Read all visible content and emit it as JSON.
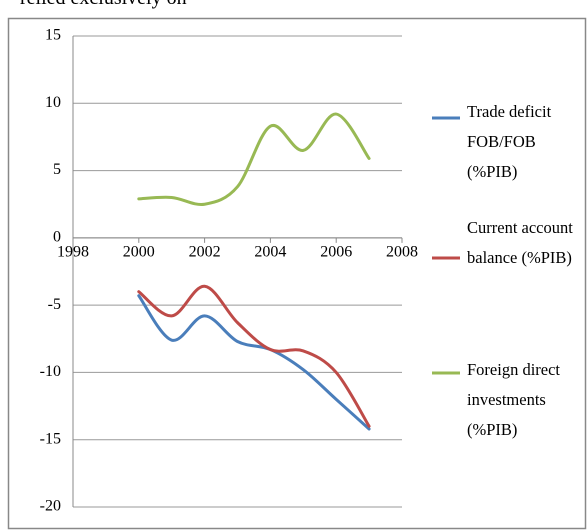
{
  "header_text": "relied exclusively on",
  "chart_data": {
    "type": "line",
    "x": [
      2000,
      2001,
      2002,
      2003,
      2004,
      2005,
      2006,
      2007
    ],
    "series": [
      {
        "name": "Trade deficit FOB/FOB (%PIB)",
        "color": "#4a7ebb",
        "values": [
          -4.3,
          -7.6,
          -5.8,
          -7.7,
          -8.3,
          -9.8,
          -12.0,
          -14.2
        ]
      },
      {
        "name": "Current account balance (%PIB)",
        "color": "#be4b48",
        "values": [
          -4.0,
          -5.8,
          -3.6,
          -6.3,
          -8.3,
          -8.4,
          -10.0,
          -14.0
        ]
      },
      {
        "name": "Foreign direct investments (%PIB)",
        "color": "#98b954",
        "values": [
          2.9,
          3.0,
          2.5,
          3.8,
          8.3,
          6.5,
          9.2,
          5.9
        ]
      }
    ],
    "xlim": [
      1998,
      2008
    ],
    "xticks": [
      1998,
      2000,
      2002,
      2004,
      2006,
      2008
    ],
    "ylim": [
      -20,
      15
    ],
    "yticks": [
      -20,
      -15,
      -10,
      -5,
      0,
      5,
      10,
      15
    ],
    "grid": true,
    "smooth": true,
    "legend": "right"
  }
}
